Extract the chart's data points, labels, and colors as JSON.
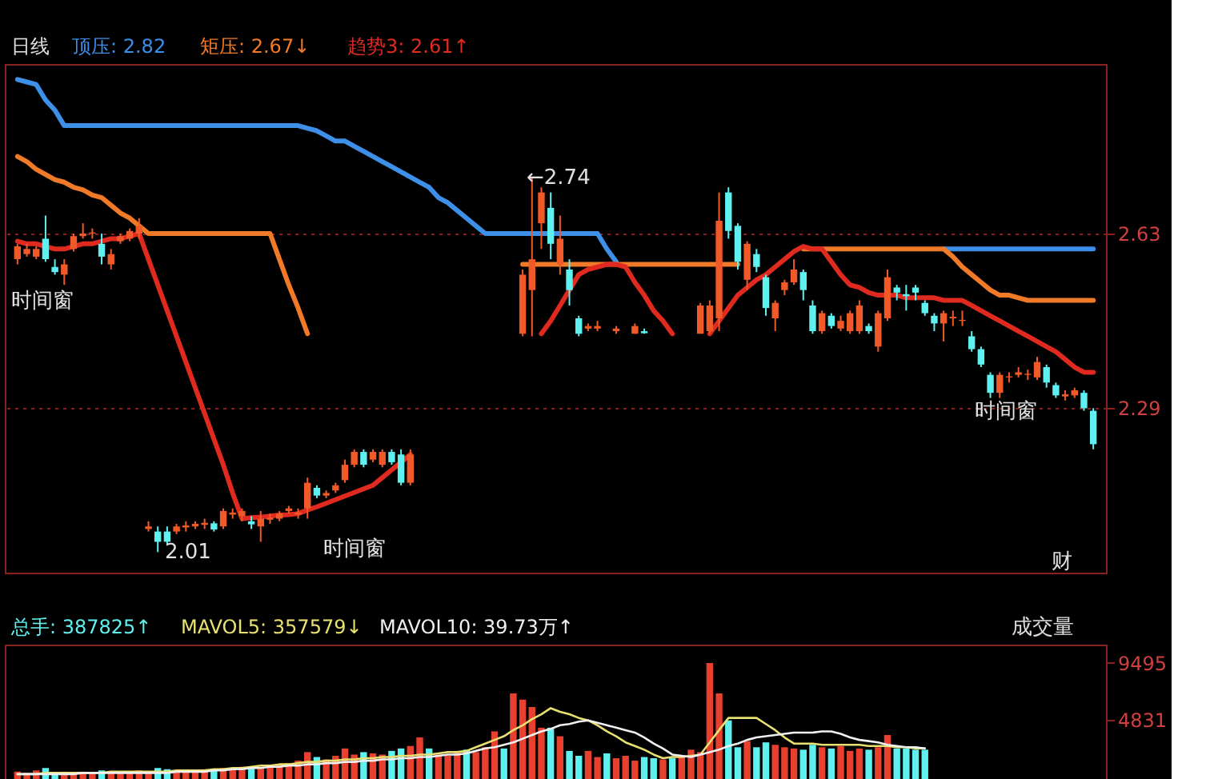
{
  "chart_data": [
    {
      "type": "candlestick",
      "title": "日线",
      "legend": "top left",
      "grid": "y",
      "ylim": [
        1.97,
        2.96
      ],
      "yticks": [
        2.29,
        2.63
      ],
      "categories": [
        null,
        null,
        null,
        null,
        null,
        null,
        null,
        null,
        null,
        null,
        null,
        null,
        null,
        null,
        null,
        null,
        null,
        null,
        null,
        null,
        null,
        null,
        null,
        null,
        null,
        null,
        null,
        null,
        null,
        null,
        null,
        null,
        null,
        null,
        null,
        null,
        null,
        null,
        null,
        null,
        null,
        null,
        null,
        null,
        null,
        null,
        null,
        null,
        null,
        null,
        null,
        null,
        null,
        null,
        null,
        null,
        null,
        null,
        null,
        null,
        null,
        null,
        null,
        null,
        null,
        null,
        null,
        null,
        null,
        null,
        null,
        null,
        null,
        null,
        null,
        null,
        null,
        null,
        null,
        null,
        null,
        null,
        null,
        null,
        null,
        null,
        null,
        null,
        null,
        null,
        null,
        null,
        null,
        null,
        null,
        null,
        null,
        null,
        null,
        null,
        null,
        null,
        null,
        null,
        null,
        null,
        null,
        null,
        null,
        null,
        null,
        null,
        null,
        null,
        null,
        null
      ],
      "ohlc": [
        [
          2.58,
          2.61,
          2.57,
          2.605
        ],
        [
          2.59,
          2.61,
          2.585,
          2.6
        ],
        [
          2.585,
          2.605,
          2.58,
          2.6
        ],
        [
          2.62,
          2.665,
          2.575,
          2.58
        ],
        [
          2.565,
          2.58,
          2.55,
          2.555
        ],
        [
          2.55,
          2.58,
          2.53,
          2.57
        ],
        [
          2.6,
          2.63,
          2.595,
          2.625
        ],
        [
          2.625,
          2.65,
          2.62,
          2.63
        ],
        [
          2.63,
          2.64,
          2.62,
          2.632
        ],
        [
          2.61,
          2.63,
          2.57,
          2.585
        ],
        [
          2.57,
          2.6,
          2.56,
          2.59
        ],
        [
          2.615,
          2.63,
          2.61,
          2.625
        ],
        [
          2.62,
          2.64,
          2.615,
          2.635
        ],
        [
          2.63,
          2.66,
          2.62,
          2.645
        ],
        [
          2.055,
          2.07,
          2.05,
          2.06
        ],
        [
          2.05,
          2.06,
          2.01,
          2.03
        ],
        [
          2.05,
          2.06,
          2.025,
          2.03
        ],
        [
          2.05,
          2.065,
          2.045,
          2.06
        ],
        [
          2.058,
          2.07,
          2.05,
          2.062
        ],
        [
          2.06,
          2.07,
          2.055,
          2.065
        ],
        [
          2.063,
          2.075,
          2.055,
          2.067
        ],
        [
          2.066,
          2.07,
          2.05,
          2.054
        ],
        [
          2.06,
          2.095,
          2.055,
          2.09
        ],
        [
          2.083,
          2.095,
          2.075,
          2.087
        ],
        [
          2.08,
          2.095,
          2.07,
          2.09
        ],
        [
          2.07,
          2.08,
          2.055,
          2.064
        ],
        [
          2.06,
          2.09,
          2.03,
          2.075
        ],
        [
          2.073,
          2.085,
          2.065,
          2.077
        ],
        [
          2.075,
          2.09,
          2.07,
          2.085
        ],
        [
          2.09,
          2.1,
          2.085,
          2.095
        ],
        [
          2.083,
          2.095,
          2.075,
          2.087
        ],
        [
          2.095,
          2.155,
          2.075,
          2.145
        ],
        [
          2.135,
          2.14,
          2.115,
          2.12
        ],
        [
          2.12,
          2.13,
          2.115,
          2.125
        ],
        [
          2.13,
          2.145,
          2.125,
          2.14
        ],
        [
          2.15,
          2.19,
          2.145,
          2.18
        ],
        [
          2.18,
          2.21,
          2.175,
          2.205
        ],
        [
          2.205,
          2.21,
          2.175,
          2.18
        ],
        [
          2.19,
          2.21,
          2.185,
          2.205
        ],
        [
          2.18,
          2.21,
          2.175,
          2.205
        ],
        [
          2.205,
          2.21,
          2.18,
          2.185
        ],
        [
          2.2,
          2.21,
          2.14,
          2.145
        ],
        [
          2.145,
          2.21,
          2.14,
          2.2
        ],
        null,
        null,
        null,
        null,
        null,
        null,
        null,
        null,
        null,
        null,
        null,
        [
          2.435,
          2.56,
          2.43,
          2.55
        ],
        [
          2.52,
          2.74,
          2.43,
          2.58
        ],
        [
          2.65,
          2.72,
          2.6,
          2.71
        ],
        [
          2.68,
          2.71,
          2.58,
          2.61
        ],
        [
          2.57,
          2.665,
          2.55,
          2.62
        ],
        [
          2.56,
          2.58,
          2.49,
          2.52
        ],
        [
          2.465,
          2.47,
          2.43,
          2.435
        ],
        [
          2.445,
          2.455,
          2.44,
          2.45
        ],
        [
          2.445,
          2.46,
          2.44,
          2.45
        ],
        null,
        [
          2.44,
          2.45,
          2.435,
          2.445
        ],
        null,
        [
          2.435,
          2.455,
          2.435,
          2.45
        ],
        [
          2.44,
          2.445,
          2.435,
          2.436
        ],
        null,
        null,
        null,
        null,
        null,
        [
          2.435,
          2.495,
          2.435,
          2.49
        ],
        [
          2.44,
          2.5,
          2.435,
          2.49
        ],
        [
          2.465,
          2.71,
          2.44,
          2.655
        ],
        [
          2.71,
          2.72,
          2.62,
          2.635
        ],
        [
          2.645,
          2.65,
          2.56,
          2.575
        ],
        [
          2.54,
          2.615,
          2.52,
          2.61
        ],
        [
          2.59,
          2.6,
          2.555,
          2.565
        ],
        [
          2.545,
          2.55,
          2.47,
          2.485
        ],
        [
          2.465,
          2.5,
          2.44,
          2.495
        ],
        [
          2.52,
          2.54,
          2.51,
          2.535
        ],
        [
          2.535,
          2.58,
          2.53,
          2.56
        ],
        [
          2.555,
          2.56,
          2.5,
          2.52
        ],
        [
          2.49,
          2.5,
          2.435,
          2.44
        ],
        [
          2.44,
          2.48,
          2.435,
          2.475
        ],
        [
          2.47,
          2.475,
          2.445,
          2.45
        ],
        [
          2.445,
          2.47,
          2.44,
          2.46
        ],
        [
          2.44,
          2.48,
          2.435,
          2.475
        ],
        [
          2.44,
          2.5,
          2.435,
          2.49
        ],
        [
          2.45,
          2.455,
          2.435,
          2.44
        ],
        [
          2.41,
          2.48,
          2.4,
          2.475
        ],
        [
          2.465,
          2.56,
          2.46,
          2.545
        ],
        [
          2.525,
          2.53,
          2.5,
          2.515
        ],
        [
          2.512,
          2.53,
          2.48,
          2.508
        ],
        [
          2.525,
          2.53,
          2.5,
          2.515
        ],
        [
          2.495,
          2.5,
          2.47,
          2.475
        ],
        [
          2.47,
          2.475,
          2.44,
          2.455
        ],
        [
          2.455,
          2.48,
          2.42,
          2.475
        ],
        [
          2.465,
          2.48,
          2.45,
          2.468
        ],
        [
          2.46,
          2.48,
          2.45,
          2.462
        ],
        [
          2.43,
          2.44,
          2.4,
          2.405
        ],
        [
          2.405,
          2.41,
          2.37,
          2.375
        ],
        [
          2.355,
          2.36,
          2.31,
          2.32
        ],
        [
          2.32,
          2.36,
          2.31,
          2.355
        ],
        [
          2.35,
          2.36,
          2.34,
          2.352
        ],
        [
          2.355,
          2.37,
          2.35,
          2.36
        ],
        [
          2.355,
          2.365,
          2.345,
          2.357
        ],
        [
          2.35,
          2.39,
          2.345,
          2.38
        ],
        [
          2.37,
          2.375,
          2.33,
          2.34
        ],
        [
          2.335,
          2.34,
          2.31,
          2.315
        ],
        [
          2.313,
          2.325,
          2.305,
          2.317
        ],
        [
          2.315,
          2.33,
          2.31,
          2.325
        ],
        [
          2.32,
          2.325,
          2.285,
          2.29
        ],
        [
          2.285,
          2.29,
          2.21,
          2.22
        ]
      ],
      "colors": [
        "#f05a28",
        "#f05a28",
        "#f05a28",
        "#5ff0f0",
        "#5ff0f0",
        "#f05a28",
        "#f05a28",
        "#f05a28",
        "#f05a28",
        "#5ff0f0",
        "#f05a28",
        "#f05a28",
        "#f05a28",
        "#f05a28",
        "#f05a28",
        "#5ff0f0",
        "#5ff0f0",
        "#f05a28",
        "#f05a28",
        "#f05a28",
        "#f05a28",
        "#5ff0f0",
        "#f05a28",
        "#f05a28",
        "#f05a28",
        "#5ff0f0",
        "#f05a28",
        "#f05a28",
        "#f05a28",
        "#f05a28",
        "#f05a28",
        "#f05a28",
        "#5ff0f0",
        "#f05a28",
        "#f05a28",
        "#f05a28",
        "#f05a28",
        "#5ff0f0",
        "#f05a28",
        "#f05a28",
        "#5ff0f0",
        "#5ff0f0",
        "#f05a28",
        null,
        null,
        null,
        null,
        null,
        null,
        null,
        null,
        null,
        null,
        null,
        "#f05a28",
        "#f05a28",
        "#f05a28",
        "#5ff0f0",
        "#f05a28",
        "#5ff0f0",
        "#5ff0f0",
        "#f05a28",
        "#f05a28",
        null,
        "#f05a28",
        null,
        "#f05a28",
        "#5ff0f0",
        null,
        null,
        null,
        null,
        null,
        "#f05a28",
        "#f05a28",
        "#f05a28",
        "#5ff0f0",
        "#5ff0f0",
        "#f05a28",
        "#5ff0f0",
        "#5ff0f0",
        "#f05a28",
        "#f05a28",
        "#f05a28",
        "#5ff0f0",
        "#5ff0f0",
        "#f05a28",
        "#5ff0f0",
        "#f05a28",
        "#f05a28",
        "#f05a28",
        "#5ff0f0",
        "#f05a28",
        "#f05a28",
        "#5ff0f0",
        "#5ff0f0",
        "#5ff0f0",
        "#5ff0f0",
        "#5ff0f0",
        "#f05a28",
        "#f05a28",
        "#f05a28",
        "#5ff0f0",
        "#5ff0f0",
        "#5ff0f0",
        "#f05a28",
        "#f05a28",
        "#f05a28",
        "#f05a28",
        "#f05a28",
        "#5ff0f0",
        "#5ff0f0",
        "#f05a28",
        "#f05a28",
        "#5ff0f0",
        "#5ff0f0"
      ],
      "series": [
        {
          "name": "顶压: 2.82",
          "color": "#3d8fe8",
          "type": "line",
          "values": [
            2.93,
            2.925,
            2.92,
            2.89,
            2.87,
            2.84,
            2.84,
            2.84,
            2.84,
            2.84,
            2.84,
            2.84,
            2.84,
            2.84,
            2.84,
            2.84,
            2.84,
            2.84,
            2.84,
            2.84,
            2.84,
            2.84,
            2.84,
            2.84,
            2.84,
            2.84,
            2.84,
            2.84,
            2.84,
            2.84,
            2.84,
            2.835,
            2.83,
            2.82,
            2.81,
            2.81,
            2.8,
            2.79,
            2.78,
            2.77,
            2.76,
            2.75,
            2.74,
            2.73,
            2.72,
            2.7,
            2.69,
            2.675,
            2.66,
            2.645,
            2.63,
            2.63,
            2.63,
            2.63,
            2.63,
            2.63,
            2.63,
            2.63,
            2.63,
            2.63,
            2.63,
            2.63,
            2.63,
            2.6,
            2.575,
            null,
            null,
            null,
            null,
            null,
            null,
            null,
            null,
            null,
            null,
            null,
            null,
            null,
            null,
            null,
            null,
            null,
            null,
            null,
            null,
            null,
            null,
            null,
            null,
            null,
            null,
            null,
            null,
            null,
            null,
            null,
            null,
            null,
            null,
            2.6,
            2.6,
            2.6,
            2.6,
            2.6,
            2.6,
            2.6,
            2.6,
            2.6,
            2.6,
            2.6,
            2.6,
            2.6,
            2.6,
            2.6,
            2.6,
            2.6
          ]
        },
        {
          "name": "矩压: 2.67↓",
          "color": "#f07a28",
          "type": "line",
          "values": [
            2.78,
            2.77,
            2.755,
            2.745,
            2.735,
            2.73,
            2.72,
            2.715,
            2.705,
            2.7,
            2.685,
            2.67,
            2.66,
            2.645,
            2.63,
            2.63,
            2.63,
            2.63,
            2.63,
            2.63,
            2.63,
            2.63,
            2.63,
            2.63,
            2.63,
            2.63,
            2.63,
            2.63,
            2.58,
            2.53,
            2.485,
            2.435,
            null,
            null,
            null,
            null,
            null,
            null,
            null,
            null,
            null,
            null,
            null,
            null,
            null,
            null,
            null,
            null,
            null,
            null,
            null,
            null,
            null,
            null,
            2.57,
            2.57,
            2.57,
            2.57,
            2.57,
            2.57,
            2.57,
            2.57,
            2.57,
            2.57,
            2.57,
            2.57,
            2.57,
            2.57,
            2.57,
            2.57,
            2.57,
            2.57,
            2.57,
            2.57,
            2.57,
            2.57,
            2.57,
            2.57,
            null,
            null,
            null,
            null,
            null,
            null,
            2.6,
            2.6,
            2.6,
            2.6,
            2.6,
            2.6,
            2.6,
            2.6,
            2.6,
            2.6,
            2.6,
            2.6,
            2.6,
            2.6,
            2.6,
            2.6,
            2.585,
            2.565,
            2.55,
            2.535,
            2.52,
            2.51,
            2.51,
            2.505,
            2.5,
            2.5,
            2.5,
            2.5,
            2.5,
            2.5,
            2.5,
            2.5
          ]
        },
        {
          "name": "趋势3: 2.61↑",
          "color": "#e02a20",
          "type": "line",
          "values": [
            2.615,
            2.61,
            2.61,
            2.605,
            2.6,
            2.6,
            2.605,
            2.61,
            2.61,
            2.615,
            2.62,
            2.62,
            2.625,
            2.63,
            2.58,
            2.53,
            2.48,
            2.43,
            2.38,
            2.33,
            2.28,
            2.23,
            2.18,
            2.125,
            2.075,
            2.077,
            2.078,
            2.08,
            2.082,
            2.083,
            2.085,
            2.092,
            2.098,
            2.105,
            2.112,
            2.119,
            2.126,
            2.133,
            2.14,
            2.155,
            2.17,
            2.185,
            2.2,
            null,
            null,
            null,
            null,
            null,
            null,
            null,
            null,
            null,
            null,
            null,
            null,
            null,
            2.435,
            2.46,
            2.49,
            2.52,
            2.55,
            2.56,
            2.565,
            2.57,
            2.57,
            2.565,
            2.535,
            2.51,
            2.48,
            2.46,
            2.435,
            null,
            null,
            null,
            2.435,
            2.46,
            2.485,
            2.51,
            2.525,
            2.54,
            2.55,
            2.565,
            2.58,
            2.595,
            2.605,
            2.6,
            2.6,
            2.575,
            2.55,
            2.53,
            2.525,
            2.515,
            2.51,
            2.51,
            2.51,
            2.505,
            2.505,
            2.505,
            2.505,
            2.5,
            2.5,
            2.5,
            2.49,
            2.48,
            2.47,
            2.46,
            2.45,
            2.44,
            2.43,
            2.42,
            2.41,
            2.4,
            2.385,
            2.37,
            2.36,
            2.36
          ]
        }
      ],
      "annotations": [
        "←2.74",
        "2.01",
        "时间窗",
        "时间窗",
        "时间窗",
        "财"
      ]
    },
    {
      "type": "bar",
      "legend": "top left",
      "ylim": [
        0,
        11000
      ],
      "yticks": [
        4831,
        9495
      ],
      "categories": [
        null,
        null,
        null,
        null,
        null,
        null,
        null,
        null,
        null,
        null,
        null,
        null,
        null,
        null,
        null,
        null,
        null,
        null,
        null,
        null,
        null,
        null,
        null,
        null,
        null,
        null,
        null,
        null,
        null,
        null,
        null,
        null,
        null,
        null,
        null,
        null,
        null,
        null,
        null,
        null,
        null,
        null,
        null,
        null,
        null,
        null,
        null,
        null,
        null,
        null,
        null,
        null,
        null,
        null,
        null,
        null,
        null,
        null,
        null,
        null,
        null,
        null,
        null,
        null,
        null,
        null,
        null,
        null,
        null,
        null,
        null,
        null,
        null,
        null,
        null,
        null,
        null,
        null,
        null,
        null,
        null,
        null,
        null,
        null,
        null,
        null,
        null,
        null,
        null,
        null,
        null,
        null,
        null,
        null,
        null,
        null,
        null,
        null,
        null,
        null,
        null,
        null,
        null,
        null,
        null,
        null,
        null,
        null,
        null,
        null,
        null,
        null,
        null,
        null,
        null,
        null
      ],
      "series": [
        {
          "name": "总手: 387825↑",
          "color": "#5ff0f0",
          "type": "bar",
          "values": [
            600,
            500,
            700,
            900,
            500,
            600,
            500,
            600,
            500,
            700,
            500,
            600,
            600,
            700,
            600,
            900,
            800,
            700,
            600,
            700,
            800,
            700,
            900,
            800,
            1000,
            900,
            1000,
            1100,
            1200,
            1300,
            1500,
            2200,
            1800,
            1600,
            1900,
            2500,
            2000,
            2200,
            2100,
            2000,
            2300,
            2500,
            2700,
            3400,
            2500,
            2000,
            1900,
            2300,
            2400,
            2200,
            2600,
            3900,
            2500,
            7000,
            6500,
            5900,
            4200,
            4200,
            3500,
            2300,
            1900,
            2300,
            1800,
            2100,
            1700,
            1900,
            1500,
            1800,
            1700,
            1600,
            1700,
            1800,
            2400,
            2200,
            9500,
            7000,
            4800,
            2600,
            3100,
            2600,
            3000,
            2800,
            2600,
            2500,
            2400,
            2800,
            2600,
            2500,
            2700,
            2300,
            2500,
            2400,
            2600,
            3600,
            2500,
            2500,
            2400,
            2400,
            null,
            null,
            null,
            null,
            null,
            null,
            null,
            null,
            null,
            null,
            null,
            null,
            null,
            null,
            null,
            null,
            null,
            null
          ],
          "colors": [
            "#e8402e",
            "#e8402e",
            "#e8402e",
            "#5ff0f0",
            "#5ff0f0",
            "#e8402e",
            "#e8402e",
            "#e8402e",
            "#e8402e",
            "#5ff0f0",
            "#e8402e",
            "#e8402e",
            "#e8402e",
            "#e8402e",
            "#e8402e",
            "#5ff0f0",
            "#5ff0f0",
            "#e8402e",
            "#e8402e",
            "#e8402e",
            "#e8402e",
            "#5ff0f0",
            "#e8402e",
            "#e8402e",
            "#e8402e",
            "#5ff0f0",
            "#e8402e",
            "#e8402e",
            "#e8402e",
            "#e8402e",
            "#e8402e",
            "#e8402e",
            "#5ff0f0",
            "#e8402e",
            "#e8402e",
            "#e8402e",
            "#e8402e",
            "#5ff0f0",
            "#e8402e",
            "#e8402e",
            "#5ff0f0",
            "#5ff0f0",
            "#e8402e",
            "#e8402e",
            "#5ff0f0",
            "#e8402e",
            "#e8402e",
            "#e8402e",
            "#5ff0f0",
            "#e8402e",
            "#e8402e",
            "#e8402e",
            "#5ff0f0",
            "#e8402e",
            "#e8402e",
            "#e8402e",
            "#e8402e",
            "#5ff0f0",
            "#e8402e",
            "#5ff0f0",
            "#5ff0f0",
            "#e8402e",
            "#e8402e",
            "#5ff0f0",
            "#e8402e",
            "#e8402e",
            "#e8402e",
            "#5ff0f0",
            "#5ff0f0",
            "#e8402e",
            "#5ff0f0",
            "#e8402e",
            "#e8402e",
            "#e8402e",
            "#e8402e",
            "#e8402e",
            "#5ff0f0",
            "#5ff0f0",
            "#e8402e",
            "#5ff0f0",
            "#5ff0f0",
            "#e8402e",
            "#e8402e",
            "#e8402e",
            "#5ff0f0",
            "#5ff0f0",
            "#e8402e",
            "#5ff0f0",
            "#e8402e",
            "#e8402e",
            "#e8402e",
            "#5ff0f0",
            "#e8402e",
            "#e8402e",
            "#5ff0f0",
            "#5ff0f0",
            "#5ff0f0",
            "#5ff0f0",
            null,
            null,
            null,
            null,
            null,
            null,
            null,
            null,
            null,
            null,
            null,
            null,
            null,
            null,
            null,
            null,
            null,
            null
          ]
        },
        {
          "name": "MAVOL5: 357579↓",
          "color": "#e8e070",
          "type": "line",
          "values": [
            400,
            400,
            400,
            500,
            500,
            500,
            500,
            500,
            500,
            500,
            600,
            600,
            600,
            600,
            600,
            600,
            600,
            700,
            700,
            700,
            700,
            800,
            800,
            900,
            900,
            1000,
            1100,
            1100,
            1200,
            1200,
            1300,
            1400,
            1400,
            1500,
            1500,
            1600,
            1600,
            1700,
            1700,
            1800,
            1800,
            1900,
            1900,
            2000,
            2000,
            2100,
            2200,
            2200,
            2300,
            2600,
            2900,
            3200,
            3500,
            4000,
            4400,
            4900,
            5300,
            5800,
            5500,
            5300,
            5000,
            4800,
            4400,
            3900,
            3500,
            3000,
            2700,
            2400,
            2000,
            1700,
            1800,
            1800,
            1900,
            2000,
            3000,
            4000,
            5000,
            5000,
            5000,
            5000,
            4500,
            4000,
            3400,
            2900,
            2900,
            2900,
            2800,
            2800,
            2800,
            2800,
            2800,
            2700,
            2700,
            2700,
            2600,
            2600,
            2500,
            2500,
            null,
            null,
            null,
            null,
            null,
            null,
            null,
            null,
            null,
            null,
            null,
            null,
            null,
            null,
            null,
            null,
            null,
            null
          ]
        },
        {
          "name": "MAVOL10: 39.73万↑",
          "color": "#f0f0f0",
          "type": "line",
          "values": [
            400,
            400,
            400,
            400,
            400,
            400,
            400,
            500,
            500,
            500,
            500,
            500,
            500,
            500,
            500,
            500,
            500,
            600,
            600,
            600,
            600,
            700,
            700,
            800,
            800,
            900,
            900,
            1000,
            1000,
            1100,
            1100,
            1200,
            1200,
            1300,
            1300,
            1400,
            1400,
            1500,
            1500,
            1600,
            1600,
            1700,
            1700,
            1800,
            1800,
            1900,
            2000,
            2000,
            2100,
            2300,
            2500,
            2600,
            2800,
            3000,
            3300,
            3600,
            3900,
            4100,
            4400,
            4500,
            4700,
            4800,
            4600,
            4400,
            4200,
            4000,
            3800,
            3400,
            2900,
            2500,
            2000,
            1900,
            1800,
            2000,
            2200,
            2400,
            2700,
            2900,
            3200,
            3400,
            3500,
            3600,
            3700,
            3800,
            3800,
            3800,
            3900,
            3900,
            3700,
            3400,
            3200,
            3100,
            3000,
            2800,
            2700,
            2600,
            2600,
            2500,
            null,
            null,
            null,
            null,
            null,
            null,
            null,
            null,
            null,
            null,
            null,
            null,
            null,
            null,
            null,
            null,
            null,
            null
          ]
        }
      ],
      "annotations": [
        "成交量"
      ]
    }
  ]
}
